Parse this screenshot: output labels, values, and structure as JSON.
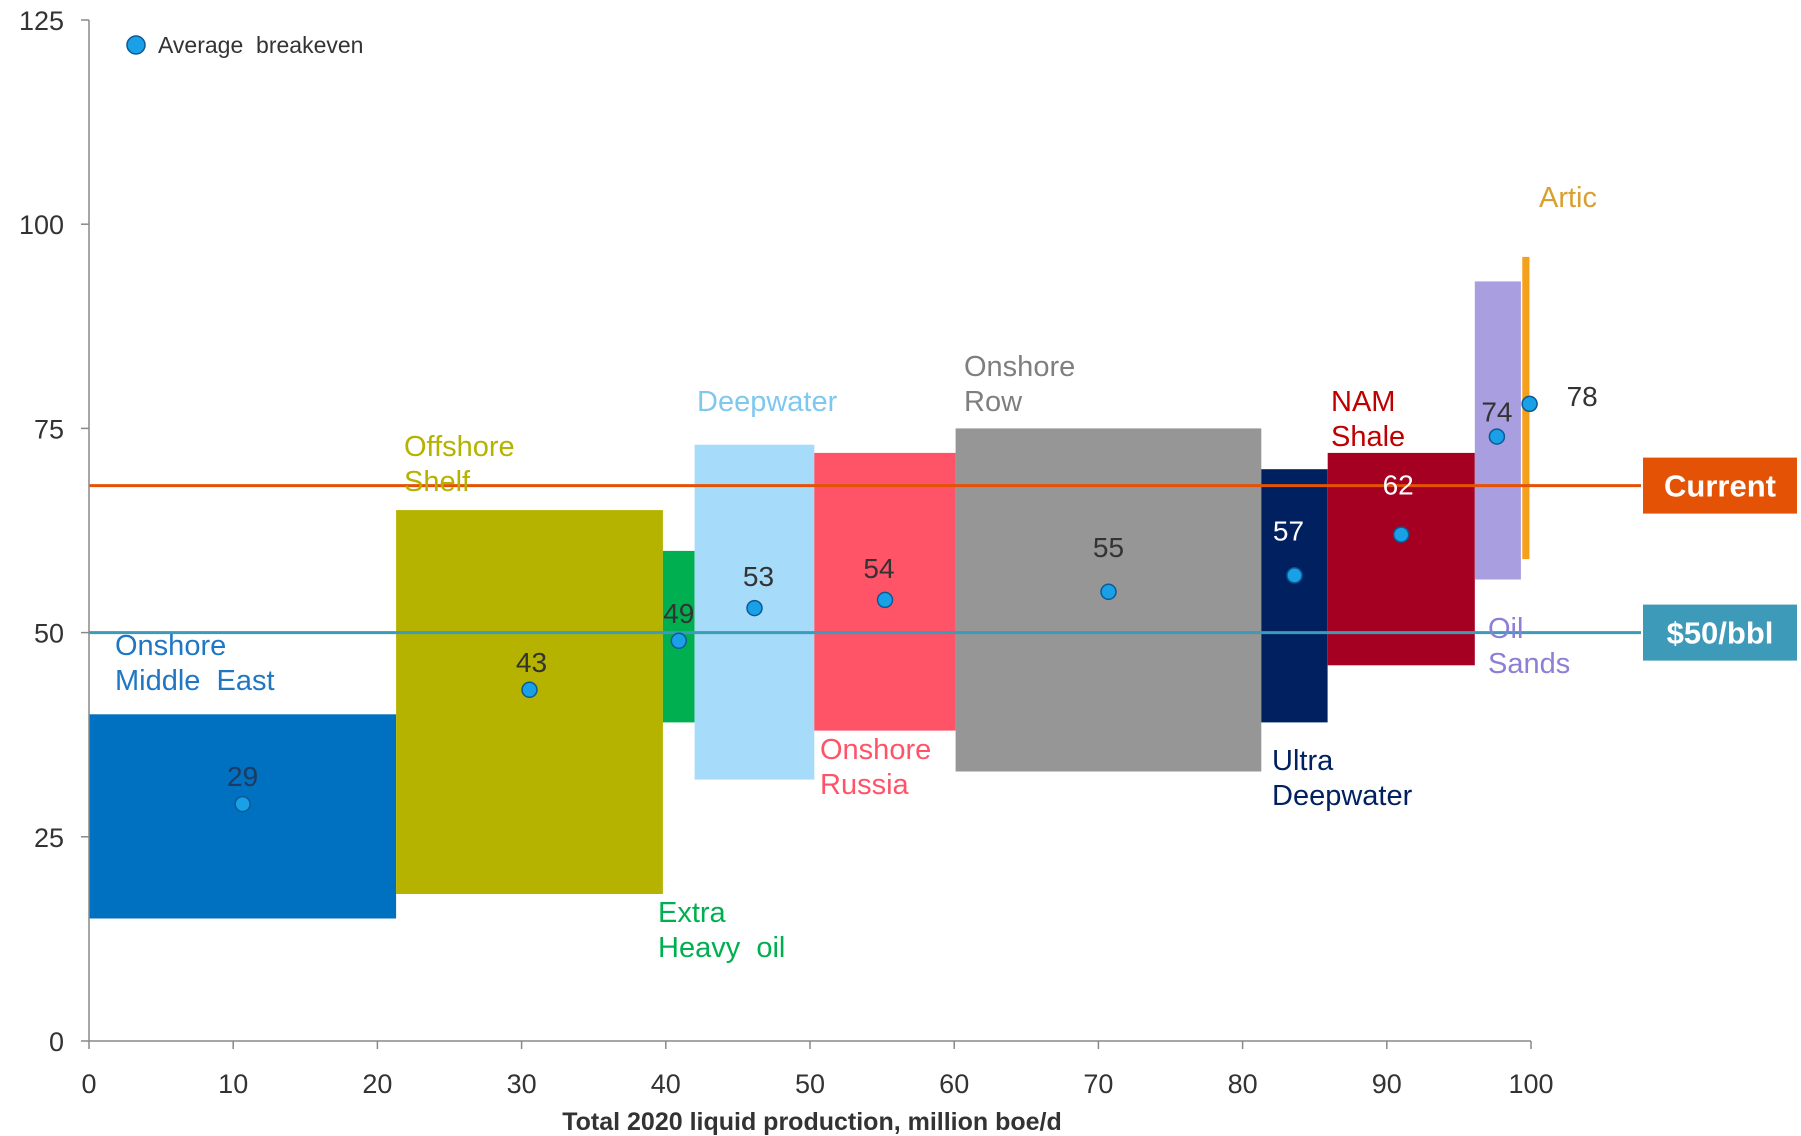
{
  "chart_data": {
    "type": "bar",
    "subtype": "variable-width floating bars (cost curve)",
    "xlabel": "Total 2020 liquid production, million boe/d",
    "ylabel": "",
    "xlim": [
      0,
      100
    ],
    "ylim": [
      0,
      125
    ],
    "x_ticks": [
      "0",
      "10",
      "20",
      "30",
      "40",
      "50",
      "60",
      "70",
      "80",
      "90",
      "100"
    ],
    "y_ticks": [
      "0",
      "25",
      "50",
      "75",
      "100",
      "125"
    ],
    "grid": false,
    "legend": {
      "position": "top-left",
      "entries": [
        {
          "label": "Average  breakeven",
          "marker": "circle",
          "color": "#1aa0e6"
        }
      ]
    },
    "series": [
      {
        "name": "Onshore Middle East",
        "label_lines": [
          "Onshore",
          "Middle  East"
        ],
        "x_start": 0,
        "x_end": 21.3,
        "low": 15,
        "high": 40,
        "breakeven": 29,
        "color": "#0070c0",
        "label_color": "#1f77c4",
        "value_color": "#1f3a5f",
        "value_label": "29"
      },
      {
        "name": "Offshore Shelf",
        "label_lines": [
          "Offshore",
          "Shelf"
        ],
        "x_start": 21.3,
        "x_end": 39.8,
        "low": 18,
        "high": 65,
        "breakeven": 43,
        "color": "#b5b300",
        "label_color": "#b5b300",
        "value_color": "#333333",
        "value_label": "43"
      },
      {
        "name": "Extra Heavy oil",
        "label_lines": [
          "Extra",
          "Heavy  oil"
        ],
        "x_start": 39.8,
        "x_end": 42.0,
        "low": 39,
        "high": 60,
        "breakeven": 49,
        "color": "#00b050",
        "label_color": "#00b050",
        "value_color": "#333333",
        "value_label": "49"
      },
      {
        "name": "Deepwater",
        "label_lines": [
          "Deepwater"
        ],
        "x_start": 42.0,
        "x_end": 50.3,
        "low": 32,
        "high": 73,
        "breakeven": 53,
        "color": "#a6dcfa",
        "label_color": "#7ec8f0",
        "value_color": "#333333",
        "value_label": "53"
      },
      {
        "name": "Onshore Russia",
        "label_lines": [
          "Onshore",
          "Russia"
        ],
        "x_start": 50.3,
        "x_end": 60.1,
        "low": 38,
        "high": 72,
        "breakeven": 54,
        "color": "#ff5468",
        "label_color": "#ff5468",
        "value_color": "#333333",
        "value_label": "54"
      },
      {
        "name": "Onshore Row",
        "label_lines": [
          "Onshore",
          "Row"
        ],
        "x_start": 60.1,
        "x_end": 81.3,
        "low": 33,
        "high": 75,
        "breakeven": 55,
        "color": "#969696",
        "label_color": "#7f7f7f",
        "value_color": "#333333",
        "value_label": "55"
      },
      {
        "name": "Ultra Deepwater",
        "label_lines": [
          "Ultra",
          "Deepwater"
        ],
        "x_start": 81.3,
        "x_end": 85.9,
        "low": 39,
        "high": 70,
        "breakeven": 57,
        "color": "#002060",
        "label_color": "#002060",
        "value_color": "#ffffff",
        "value_label": "57"
      },
      {
        "name": "NAM Shale",
        "label_lines": [
          "NAM",
          "Shale"
        ],
        "x_start": 85.9,
        "x_end": 96.1,
        "low": 46,
        "high": 72,
        "breakeven": 62,
        "color": "#a50021",
        "label_color": "#c00000",
        "value_color": "#ffffff",
        "value_label": "62"
      },
      {
        "name": "Oil Sands",
        "label_lines": [
          "Oil",
          "Sands"
        ],
        "x_start": 96.1,
        "x_end": 99.3,
        "low": 56.5,
        "high": 93,
        "breakeven": 74,
        "color": "#a99ee0",
        "label_color": "#8b7fd6",
        "value_color": "#333333",
        "value_label": "74"
      },
      {
        "name": "Artic",
        "label_lines": [
          "Artic"
        ],
        "x_start": 99.4,
        "x_end": 99.9,
        "low": 59,
        "high": 96,
        "breakeven": 78,
        "color": "#f5a01a",
        "label_color": "#d9a030",
        "value_color": "#333333",
        "value_label": "78"
      }
    ],
    "reference_lines": [
      {
        "name": "Current",
        "value": 68,
        "color": "#e35205",
        "tag_label": "Current",
        "tag_color": "#e35205"
      },
      {
        "name": "$50/bbl",
        "value": 50,
        "color": "#3d9ab8",
        "tag_label": "$50/bbl",
        "tag_color": "#3d9ab8"
      }
    ]
  },
  "colors": {
    "axis": "#888888",
    "marker": "#1aa0e6",
    "marker_stroke": "#0b5a94"
  }
}
